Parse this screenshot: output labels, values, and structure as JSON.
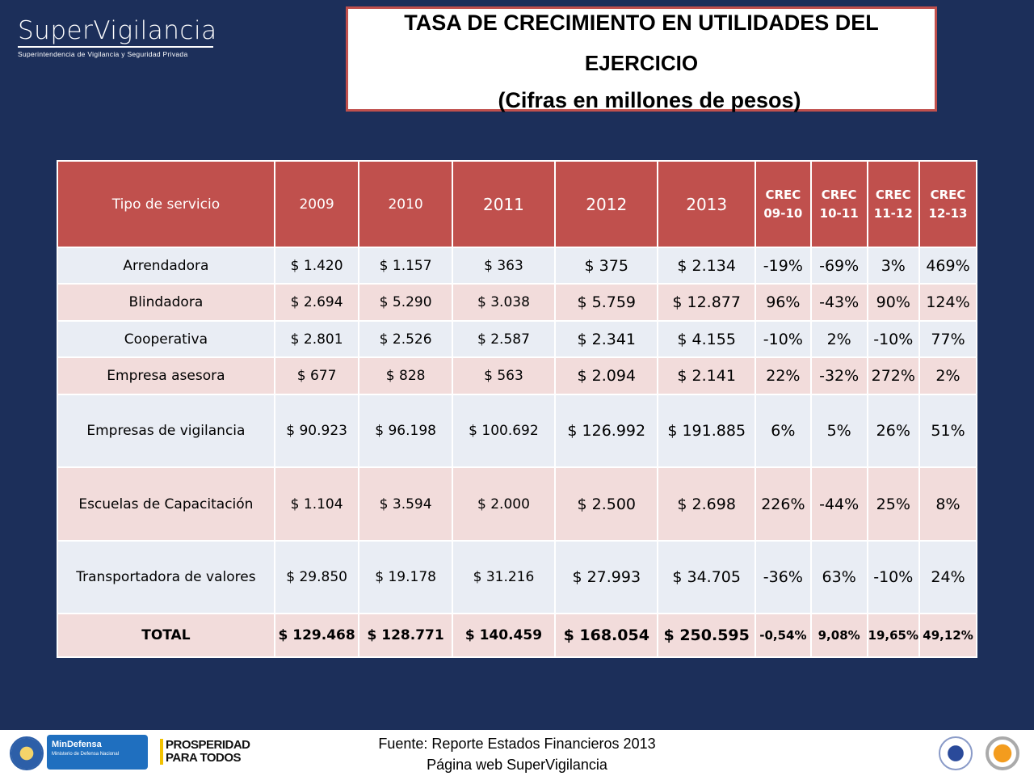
{
  "logo": {
    "name": "SuperVigilancia",
    "subtitle": "Superintendencia de Vigilancia y Seguridad Privada"
  },
  "title": {
    "line1": "TASA DE CRECIMIENTO EN UTILIDADES DEL",
    "line2": "EJERCICIO",
    "line3": "(Cifras en millones de pesos)"
  },
  "table": {
    "headers": [
      "Tipo de servicio",
      "2009",
      "2010",
      "2011",
      "2012",
      "2013",
      "CREC 09-10",
      "CREC 10-11",
      "CREC 11-12",
      "CREC 12-13"
    ],
    "rows": [
      [
        "Arrendadora",
        "$ 1.420",
        "$ 1.157",
        "$ 363",
        "$ 375",
        "$ 2.134",
        "-19%",
        "-69%",
        "3%",
        "469%"
      ],
      [
        "Blindadora",
        "$ 2.694",
        "$ 5.290",
        "$ 3.038",
        "$ 5.759",
        "$ 12.877",
        "96%",
        "-43%",
        "90%",
        "124%"
      ],
      [
        "Cooperativa",
        "$ 2.801",
        "$ 2.526",
        "$ 2.587",
        "$ 2.341",
        "$ 4.155",
        "-10%",
        "2%",
        "-10%",
        "77%"
      ],
      [
        "Empresa asesora",
        "$ 677",
        "$ 828",
        "$ 563",
        "$ 2.094",
        "$ 2.141",
        "22%",
        "-32%",
        "272%",
        "2%"
      ],
      [
        "Empresas de vigilancia",
        "$ 90.923",
        "$ 96.198",
        "$ 100.692",
        "$ 126.992",
        "$ 191.885",
        "6%",
        "5%",
        "26%",
        "51%"
      ],
      [
        "Escuelas de Capacitación",
        "$ 1.104",
        "$ 3.594",
        "$ 2.000",
        "$ 2.500",
        "$ 2.698",
        "226%",
        "-44%",
        "25%",
        "8%"
      ],
      [
        "Transportadora de valores",
        "$ 29.850",
        "$ 19.178",
        "$ 31.216",
        "$ 27.993",
        "$ 34.705",
        "-36%",
        "63%",
        "-10%",
        "24%"
      ]
    ],
    "total": [
      "TOTAL",
      "$ 129.468",
      "$ 128.771",
      "$ 140.459",
      "$ 168.054",
      "$ 250.595",
      "-0,54%",
      "9,08%",
      "19,65%",
      "49,12%"
    ]
  },
  "footer": {
    "source_line1": "Fuente: Reporte Estados Financieros 2013",
    "source_line2": "Página web SuperVigilancia",
    "mindefensa": "MinDefensa",
    "mindefensa_sub": "Ministerio de Defensa Nacional",
    "prosperidad": "PROSPERIDAD PARA TODOS"
  },
  "colors": {
    "background": "#1c2f5a",
    "header": "#c0504d",
    "row_blue": "#e9edf4",
    "row_pink": "#f2dcdb"
  }
}
